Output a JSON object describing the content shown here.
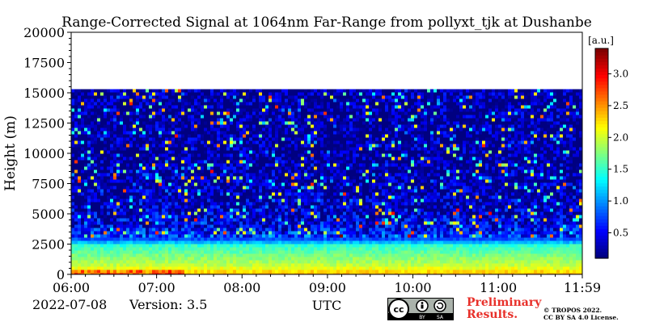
{
  "chart_data": {
    "type": "heatmap",
    "title": "Range-Corrected Signal at 1064nm Far-Range from pollyxt_tjk at Dushanbe",
    "ylabel": "Height (m)",
    "xlabel": "UTC",
    "x_ticks": [
      "06:00",
      "07:00",
      "08:00",
      "09:00",
      "10:00",
      "11:00",
      "11:59"
    ],
    "x_tick_hours": [
      6,
      7,
      8,
      9,
      10,
      11,
      11.983
    ],
    "xlim": [
      6,
      11.983
    ],
    "y_ticks": [
      0,
      2500,
      5000,
      7500,
      10000,
      12500,
      15000,
      17500,
      20000
    ],
    "ylim": [
      0,
      20000
    ],
    "data_top_m": 15300,
    "colorbar": {
      "unit": "[a.u.]",
      "ticks": [
        0.5,
        1.0,
        1.5,
        2.0,
        2.5,
        3.0
      ],
      "range": [
        0.1,
        3.4
      ],
      "colormap": "jet"
    },
    "profile": [
      {
        "height_m": 200,
        "value": 2.4
      },
      {
        "height_m": 800,
        "value": 2.0
      },
      {
        "height_m": 1500,
        "value": 1.8
      },
      {
        "height_m": 2500,
        "value": 1.5
      },
      {
        "height_m": 3000,
        "value": 0.8
      },
      {
        "height_m": 4000,
        "value": 0.5
      },
      {
        "height_m": 6000,
        "value": 0.3
      },
      {
        "height_m": 10000,
        "value": 0.2
      },
      {
        "height_m": 15000,
        "value": 0.2
      }
    ]
  },
  "footer": {
    "date": "2022-07-08",
    "version": "Version: 3.5",
    "preliminary_line1": "Preliminary",
    "preliminary_line2": "Results.",
    "license_line1": "© TROPOS 2022.",
    "license_line2": "CC BY SA 4.0 License.",
    "badge_by": "BY",
    "badge_sa": "SA"
  }
}
